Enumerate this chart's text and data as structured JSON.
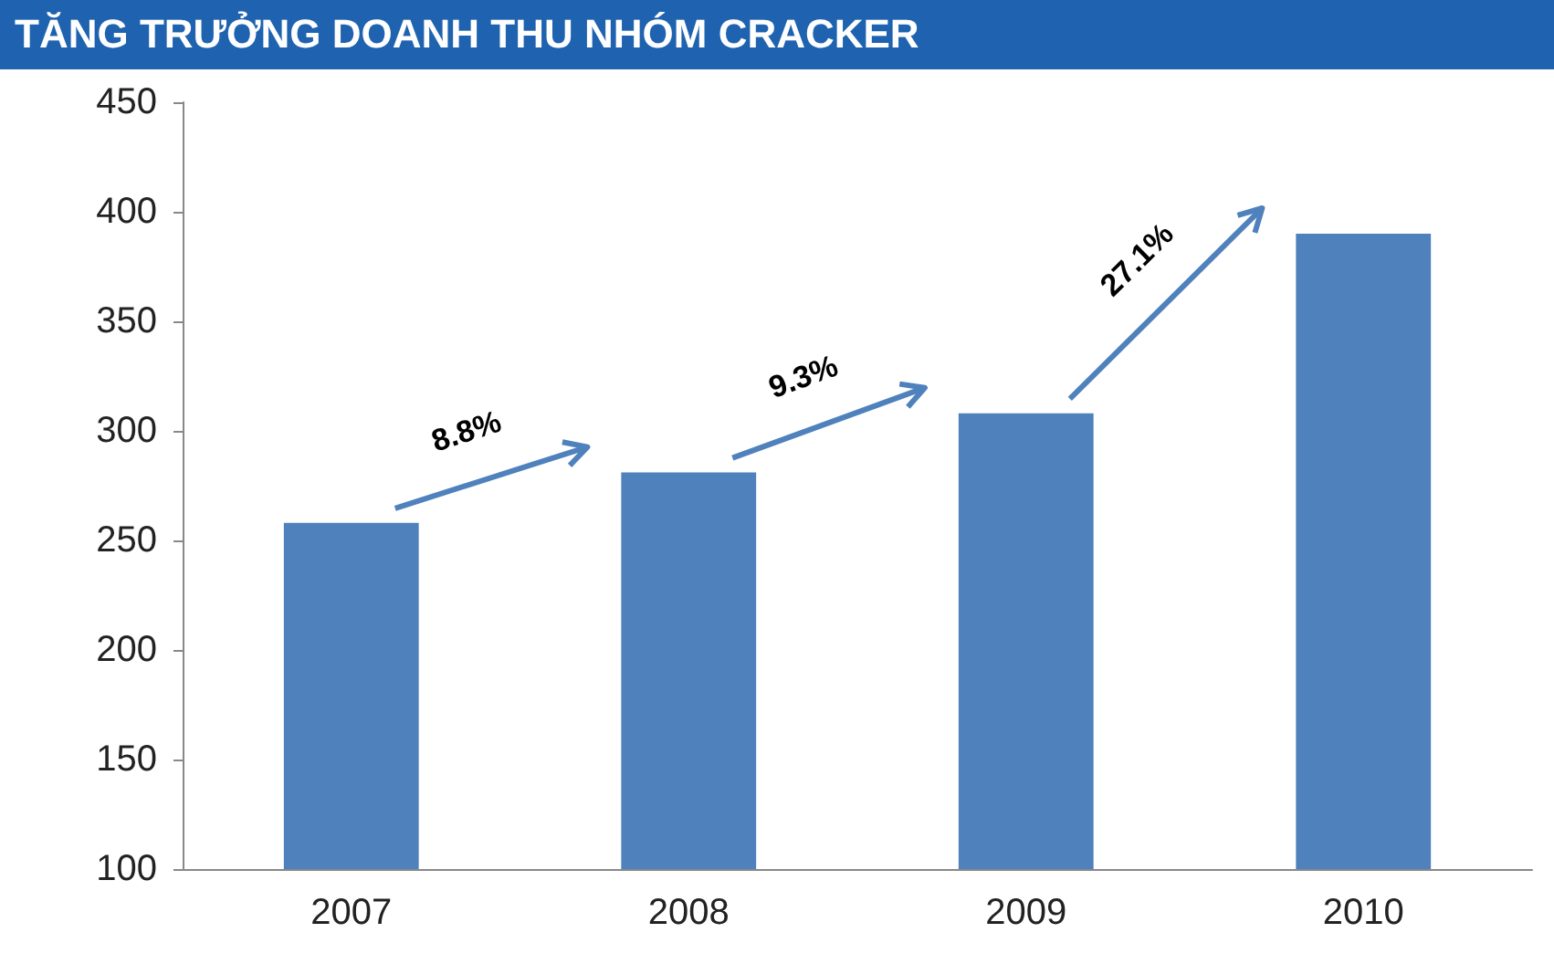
{
  "chart_data": {
    "type": "bar",
    "title": "TĂNG TRƯỞNG DOANH THU NHÓM CRACKER",
    "categories": [
      "2007",
      "2008",
      "2009",
      "2010"
    ],
    "values": [
      258,
      281,
      308,
      390
    ],
    "color": "#4f81bd",
    "ylim": [
      100,
      450
    ],
    "yticks": [
      100,
      150,
      200,
      250,
      300,
      350,
      400,
      450
    ],
    "annotations": [
      "8.8%",
      "9.3%",
      "27.1%"
    ],
    "grid": false
  }
}
